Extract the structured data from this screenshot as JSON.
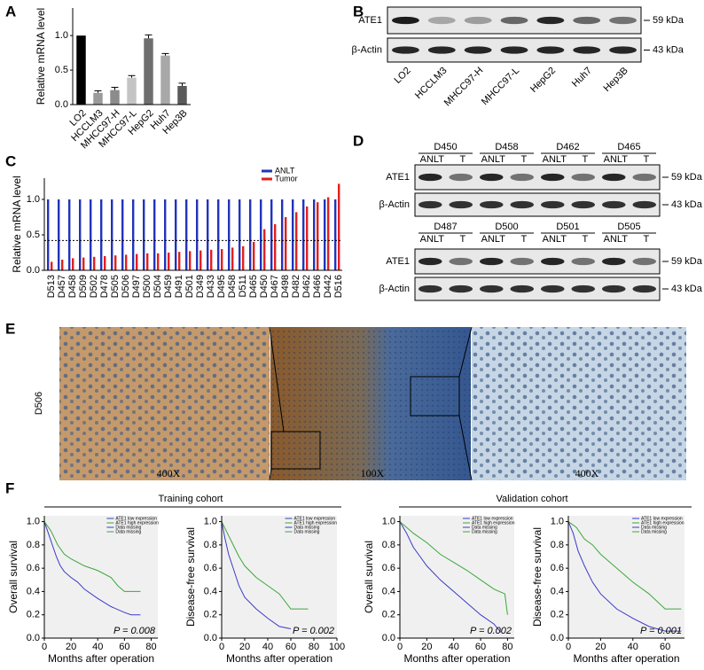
{
  "panel_letters": [
    "A",
    "B",
    "C",
    "D",
    "E",
    "F"
  ],
  "blot_b": {
    "rows": [
      "ATE1",
      "β-Actin"
    ],
    "sizes": [
      "59 kDa",
      "43 kDa"
    ],
    "lanes": [
      "LO2",
      "HCCLM3",
      "MHCC97-H",
      "MHCC97-L",
      "HepG2",
      "Huh7",
      "Hep3B"
    ]
  },
  "blot_d": {
    "rows": [
      "ATE1",
      "β-Actin"
    ],
    "sizes": [
      "59 kDa",
      "43 kDa"
    ],
    "lanes": [
      "ANLT",
      "T"
    ],
    "groups": [
      [
        "D450",
        "D458",
        "D462",
        "D465"
      ],
      [
        "D487",
        "D500",
        "D501",
        "D505"
      ]
    ]
  },
  "panel_e": {
    "sample": "D506",
    "magnifications": [
      "400X",
      "100X",
      "400X"
    ]
  },
  "cohorts": [
    "Training cohort",
    "Validation cohort"
  ],
  "chart_data": [
    {
      "type": "bar",
      "ylabel": "Relative mRNA level",
      "categories": [
        "LO2",
        "HCCLM3",
        "MHCC97-H",
        "MHCC97-L",
        "HepG2",
        "Huh7",
        "Hep3B"
      ],
      "values": [
        1.0,
        0.17,
        0.21,
        0.39,
        0.96,
        0.71,
        0.27
      ],
      "errors": [
        0,
        0.03,
        0.04,
        0.03,
        0.05,
        0.03,
        0.04
      ],
      "colors": [
        "#000000",
        "#9a9a9a",
        "#8c8c8c",
        "#c4c4c4",
        "#6e6e6e",
        "#a8a8a8",
        "#5a5a5a"
      ],
      "ylim": [
        0,
        1.4
      ],
      "yticks": [
        {
          "value": 0,
          "label": "0.0"
        },
        0.5,
        {
          "value": 1,
          "label": "1.0"
        }
      ]
    },
    {
      "type": "bar",
      "ylabel": "Relative mRNA level",
      "categories": [
        "D513",
        "D457",
        "D458",
        "D509",
        "D502",
        "D478",
        "D505",
        "D506",
        "D497",
        "D500",
        "D504",
        "D459",
        "D491",
        "D501",
        "D349",
        "D433",
        "D495",
        "D458",
        "D511",
        "D465",
        "D450",
        "D467",
        "D498",
        "D482",
        "D462",
        "D466",
        "D442",
        "D516"
      ],
      "series": [
        {
          "name": "ANLT",
          "color": "#2233bb",
          "values": [
            1,
            1,
            1,
            1,
            1,
            1,
            1,
            1,
            1,
            1,
            1,
            1,
            1,
            1,
            1,
            1,
            1,
            1,
            1,
            1,
            1,
            1,
            1,
            1,
            1,
            1,
            1,
            1
          ]
        },
        {
          "name": "Tumor",
          "color": "#e02020",
          "values": [
            0.12,
            0.15,
            0.17,
            0.18,
            0.19,
            0.2,
            0.21,
            0.22,
            0.23,
            0.24,
            0.24,
            0.25,
            0.26,
            0.27,
            0.28,
            0.29,
            0.3,
            0.32,
            0.34,
            0.4,
            0.58,
            0.65,
            0.75,
            0.82,
            0.9,
            0.96,
            1.03,
            1.22
          ]
        }
      ],
      "reference_line": 0.42,
      "ylim": [
        0,
        1.3
      ],
      "yticks": [
        {
          "value": 0,
          "label": "0.0"
        },
        0.5,
        {
          "value": 1,
          "label": "1.0"
        }
      ]
    },
    {
      "type": "line",
      "ylabel": "Overall survival",
      "xlabel": "Months after operation",
      "annotation": "P = 0.008",
      "series": [
        {
          "name": "ATE1 low expression",
          "color": "#3a3ac8",
          "x": [
            0,
            3,
            6,
            9,
            12,
            15,
            20,
            25,
            30,
            40,
            50,
            60,
            65,
            72
          ],
          "values": [
            1,
            0.9,
            0.8,
            0.7,
            0.62,
            0.57,
            0.52,
            0.48,
            0.42,
            0.34,
            0.27,
            0.22,
            0.2,
            0.2
          ]
        },
        {
          "name": "ATE1 high expression",
          "color": "#3aa83a",
          "x": [
            0,
            5,
            10,
            15,
            20,
            30,
            40,
            50,
            55,
            60,
            72
          ],
          "values": [
            1,
            0.92,
            0.8,
            0.72,
            0.68,
            0.62,
            0.58,
            0.52,
            0.45,
            0.4,
            0.4
          ]
        }
      ],
      "legend_extra": [
        "Data missing",
        "Data missing"
      ],
      "xlim": [
        0,
        85
      ],
      "xticks": [
        0,
        20,
        40,
        60,
        80
      ],
      "ylim": [
        0,
        1.05
      ],
      "yticks": [
        {
          "value": 0,
          "label": "0.0"
        },
        0.2,
        0.4,
        0.6,
        0.8,
        {
          "value": 1,
          "label": "1.0"
        }
      ]
    },
    {
      "type": "line",
      "ylabel": "Disease-free survival",
      "xlabel": "Months after operation",
      "annotation": "P = 0.002",
      "series": [
        {
          "name": "ATE1 low expression",
          "color": "#3a3ac8",
          "x": [
            0,
            3,
            6,
            10,
            15,
            20,
            30,
            40,
            50,
            60
          ],
          "values": [
            1,
            0.85,
            0.72,
            0.6,
            0.45,
            0.35,
            0.25,
            0.17,
            0.1,
            0.08
          ]
        },
        {
          "name": "ATE1 high expression",
          "color": "#3aa83a",
          "x": [
            0,
            5,
            10,
            15,
            20,
            30,
            40,
            50,
            60,
            75
          ],
          "values": [
            1,
            0.9,
            0.8,
            0.7,
            0.62,
            0.52,
            0.45,
            0.38,
            0.25,
            0.25
          ]
        }
      ],
      "legend_extra": [
        "Data missing",
        "Data missing"
      ],
      "xlim": [
        0,
        100
      ],
      "xticks": [
        0,
        20,
        40,
        60,
        80,
        100
      ],
      "ylim": [
        0,
        1.05
      ],
      "yticks": [
        {
          "value": 0,
          "label": "0.0"
        },
        0.2,
        0.4,
        0.6,
        0.8,
        {
          "value": 1,
          "label": "1.0"
        }
      ]
    },
    {
      "type": "line",
      "ylabel": "Overall survival",
      "xlabel": "Months after operation",
      "annotation": "P = 0.002",
      "series": [
        {
          "name": "ATE1 low expression",
          "color": "#3a3ac8",
          "x": [
            0,
            5,
            10,
            15,
            20,
            30,
            40,
            50,
            60,
            70,
            75
          ],
          "values": [
            1,
            0.9,
            0.78,
            0.7,
            0.62,
            0.5,
            0.4,
            0.3,
            0.2,
            0.12,
            0.05
          ]
        },
        {
          "name": "ATE1 high expression",
          "color": "#3aa83a",
          "x": [
            0,
            5,
            10,
            20,
            30,
            40,
            50,
            60,
            70,
            78,
            80
          ],
          "values": [
            1,
            0.95,
            0.9,
            0.82,
            0.72,
            0.65,
            0.58,
            0.5,
            0.42,
            0.38,
            0.2
          ]
        }
      ],
      "legend_extra": [
        "Data missing",
        "Data missing"
      ],
      "xlim": [
        0,
        85
      ],
      "xticks": [
        0,
        20,
        40,
        60,
        80
      ],
      "ylim": [
        0,
        1.05
      ],
      "yticks": [
        {
          "value": 0,
          "label": "0.0"
        },
        0.2,
        0.4,
        0.6,
        0.8,
        {
          "value": 1,
          "label": "1.0"
        }
      ]
    },
    {
      "type": "line",
      "ylabel": "Disease-free survival",
      "xlabel": "Months after operation",
      "annotation": "P = 0.001",
      "series": [
        {
          "name": "ATE1 low expression",
          "color": "#3a3ac8",
          "x": [
            0,
            3,
            6,
            10,
            15,
            20,
            30,
            40,
            50,
            60,
            70
          ],
          "values": [
            1,
            0.9,
            0.75,
            0.62,
            0.48,
            0.38,
            0.25,
            0.17,
            0.1,
            0.06,
            0.06
          ]
        },
        {
          "name": "ATE1 high expression",
          "color": "#3aa83a",
          "x": [
            0,
            5,
            10,
            15,
            20,
            30,
            40,
            50,
            60,
            70
          ],
          "values": [
            1,
            0.95,
            0.85,
            0.8,
            0.72,
            0.6,
            0.48,
            0.38,
            0.25,
            0.25
          ]
        }
      ],
      "legend_extra": [
        "Data missing",
        "Data missing"
      ],
      "xlim": [
        0,
        72
      ],
      "xticks": [
        0,
        20,
        40,
        60
      ],
      "ylim": [
        0,
        1.05
      ],
      "yticks": [
        {
          "value": 0,
          "label": "0.0"
        },
        0.2,
        0.4,
        0.6,
        0.8,
        {
          "value": 1,
          "label": "1.0"
        }
      ]
    }
  ]
}
